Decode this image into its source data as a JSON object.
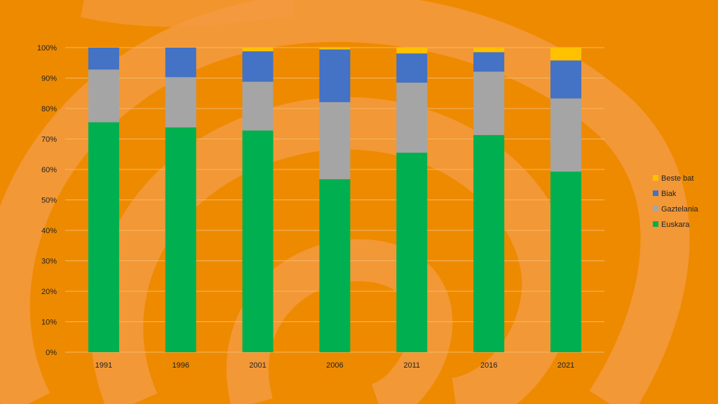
{
  "chart_data": {
    "type": "bar",
    "stacked": true,
    "normalized": true,
    "categories": [
      "1991",
      "1996",
      "2001",
      "2006",
      "2011",
      "2016",
      "2021"
    ],
    "series": [
      {
        "name": "Euskara",
        "color": "#00b050",
        "values": [
          75.5,
          73.8,
          72.8,
          56.8,
          65.5,
          71.3,
          59.3
        ]
      },
      {
        "name": "Gaztelania",
        "color": "#a5a5a5",
        "values": [
          17.3,
          16.5,
          16.0,
          25.3,
          23.0,
          20.8,
          24.0
        ]
      },
      {
        "name": "Biak",
        "color": "#4472c4",
        "values": [
          7.2,
          9.7,
          10.0,
          17.3,
          9.6,
          6.4,
          12.5
        ]
      },
      {
        "name": "Beste bat",
        "color": "#ffc000",
        "values": [
          0.0,
          0.0,
          1.2,
          0.6,
          1.9,
          1.5,
          4.2
        ]
      }
    ],
    "ylim": [
      0,
      100
    ],
    "yticks": [
      "0%",
      "10%",
      "20%",
      "30%",
      "40%",
      "50%",
      "60%",
      "70%",
      "80%",
      "90%",
      "100%"
    ],
    "grid": true,
    "legend_position": "right",
    "background_color": "#ee8a00",
    "gridline_color": "#f4b866"
  }
}
